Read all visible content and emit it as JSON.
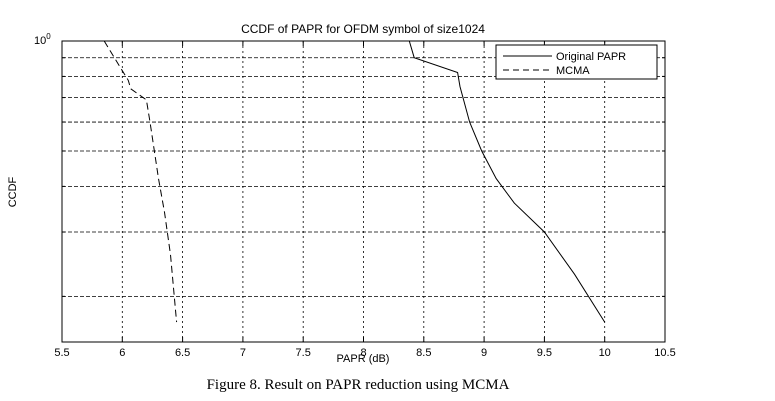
{
  "chart_data": {
    "type": "line",
    "title": "CCDF of PAPR for OFDM symbol of size1024",
    "xlabel": "PAPR (dB)",
    "ylabel": "CCDF",
    "xlim": [
      5.5,
      10.5
    ],
    "ylim": [
      0.15,
      1.0
    ],
    "yscale": "log",
    "xticks": [
      5.5,
      6,
      6.5,
      7,
      7.5,
      8,
      8.5,
      9,
      9.5,
      10,
      10.5
    ],
    "xtick_labels": [
      "5.5",
      "6",
      "6.5",
      "7",
      "7.5",
      "8",
      "8.5",
      "9",
      "9.5",
      "10",
      "10.5"
    ],
    "ytick_label_base": "10",
    "ytick_label_exp": "0",
    "yminor_ticks": [
      0.2,
      0.3,
      0.4,
      0.5,
      0.6,
      0.7,
      0.8,
      0.9
    ],
    "grid": true,
    "legend_position": "top-right",
    "series": [
      {
        "name": "Original PAPR",
        "style": "solid",
        "color": "#000000",
        "x": [
          8.38,
          8.42,
          8.78,
          8.8,
          8.88,
          8.98,
          9.1,
          9.25,
          9.5,
          9.75,
          10.0
        ],
        "y": [
          1.0,
          0.9,
          0.82,
          0.75,
          0.6,
          0.5,
          0.42,
          0.36,
          0.3,
          0.23,
          0.17
        ]
      },
      {
        "name": "MCMA",
        "style": "dashed",
        "color": "#000000",
        "x": [
          5.85,
          5.98,
          6.05,
          6.07,
          6.2,
          6.23,
          6.3,
          6.35,
          6.4,
          6.45
        ],
        "y": [
          1.0,
          0.85,
          0.78,
          0.74,
          0.69,
          0.6,
          0.42,
          0.34,
          0.26,
          0.17
        ]
      }
    ]
  },
  "caption": "Figure 8.  Result on PAPR reduction using MCMA"
}
